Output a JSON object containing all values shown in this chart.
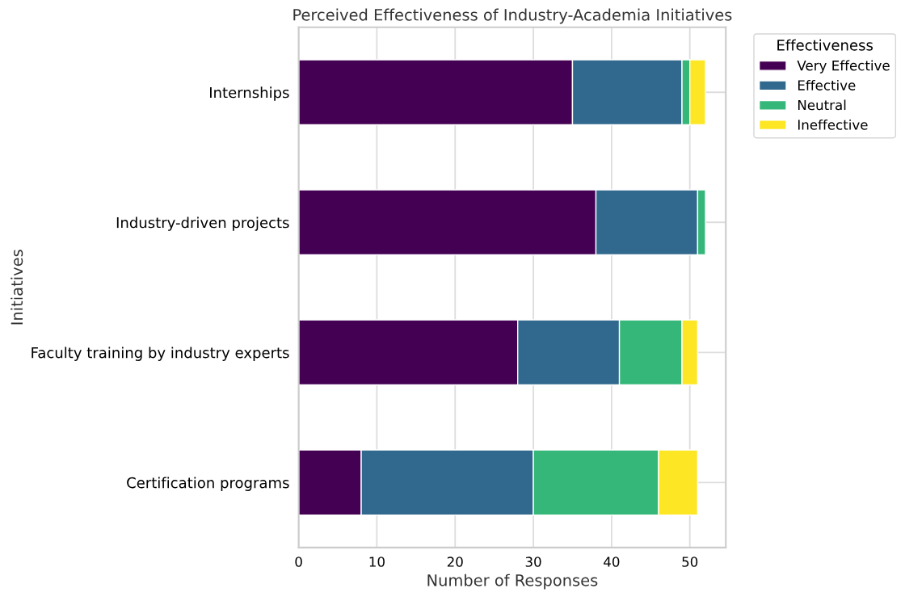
{
  "chart_data": {
    "type": "bar",
    "orientation": "horizontal",
    "stacked": true,
    "title": "Perceived Effectiveness of Industry-Academia Initiatives",
    "xlabel": "Number of Responses",
    "ylabel": "Initiatives",
    "legend_title": "Effectiveness",
    "categories": [
      "Internships",
      "Industry-driven projects",
      "Faculty training by industry experts",
      "Certification programs"
    ],
    "series": [
      {
        "name": "Very Effective",
        "color": "#440154",
        "values": [
          35,
          38,
          28,
          8
        ]
      },
      {
        "name": "Effective",
        "color": "#31688e",
        "values": [
          14,
          13,
          13,
          22
        ]
      },
      {
        "name": "Neutral",
        "color": "#35b779",
        "values": [
          1,
          1,
          8,
          16
        ]
      },
      {
        "name": "Ineffective",
        "color": "#fde725",
        "values": [
          2,
          null,
          2,
          5
        ]
      }
    ],
    "xlim": [
      0,
      54.6
    ],
    "xticks": [
      0,
      10,
      20,
      30,
      40,
      50
    ],
    "grid": true,
    "legend": "top right"
  }
}
